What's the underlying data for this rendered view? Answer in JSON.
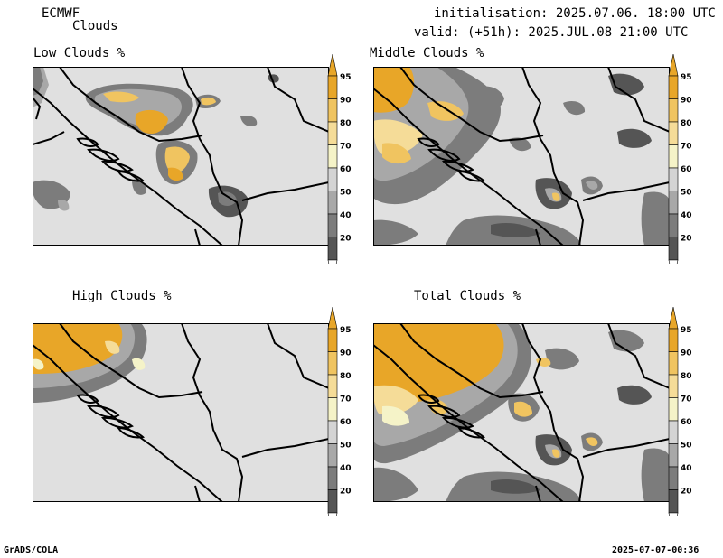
{
  "header": {
    "model": "ECMWF",
    "product": "Clouds",
    "init": "initialisation: 2025.07.06. 18:00 UTC",
    "valid": "valid: (+51h): 2025.JUL.08 21:00 UTC"
  },
  "panels": [
    {
      "title": "Low Clouds %"
    },
    {
      "title": "Middle Clouds %"
    },
    {
      "title": "High Clouds %"
    },
    {
      "title": "Total Clouds %"
    }
  ],
  "colorbar": {
    "levels": [
      "95",
      "90",
      "80",
      "70",
      "60",
      "50",
      "40",
      "20"
    ],
    "colors": [
      "#e8a628",
      "#f0c460",
      "#f5dc98",
      "#f5f3c8",
      "#d4d4d4",
      "#a8a8a8",
      "#7c7c7c",
      "#555555"
    ],
    "below_color": "#ffffff",
    "above_color": "#e8a628"
  },
  "colors": {
    "background_field": "#e0e0e0",
    "gray_light": "#a8a8a8",
    "gray_mid": "#7c7c7c",
    "gray_dark": "#555555",
    "yellow_pale": "#f5f3c8",
    "yellow_light": "#f5dc98",
    "yellow_mid": "#f0c460",
    "orange": "#e8a628"
  },
  "footer": {
    "left": "GrADS/COLA",
    "right": "2025-07-07-00:36"
  }
}
